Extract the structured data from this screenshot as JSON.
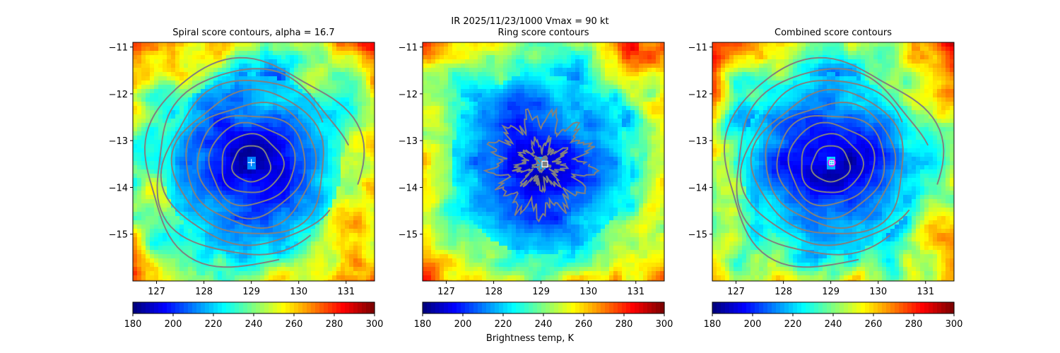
{
  "figure": {
    "suptitle": "IR  2025/11/23/1000    Vmax = 90 kt",
    "colorbar_label": "Brightness temp, K"
  },
  "chart_data": [
    {
      "type": "heatmap",
      "title": "Spiral score contours, alpha = 16.7",
      "xlim": [
        126.5,
        131.6
      ],
      "ylim": [
        -16.0,
        -10.9
      ],
      "xticks": [
        127,
        128,
        129,
        130,
        131
      ],
      "yticks": [
        -11,
        -12,
        -13,
        -14,
        -15
      ],
      "xtick_labels": [
        "127",
        "128",
        "129",
        "130",
        "131"
      ],
      "ytick_labels": [
        "−11",
        "−12",
        "−13",
        "−14",
        "−15"
      ],
      "colormap": "jet",
      "color_range": [
        180,
        300
      ],
      "colorbar_ticks": [
        180,
        200,
        220,
        240,
        260,
        280,
        300
      ],
      "contour_color": "#808080",
      "contour_style": "concentric",
      "center_marker": {
        "symbol": "+",
        "lon": 129.0,
        "lat": -13.47,
        "color": "#ffffff"
      }
    },
    {
      "type": "heatmap",
      "title": "Ring score contours",
      "xlim": [
        126.5,
        131.6
      ],
      "ylim": [
        -16.0,
        -10.9
      ],
      "xticks": [
        127,
        128,
        129,
        130,
        131
      ],
      "yticks": [
        -11,
        -12,
        -13,
        -14,
        -15
      ],
      "xtick_labels": [
        "127",
        "128",
        "129",
        "130",
        "131"
      ],
      "ytick_labels": [
        "−11",
        "−12",
        "−13",
        "−14",
        "−15"
      ],
      "colormap": "jet",
      "color_range": [
        180,
        300
      ],
      "colorbar_ticks": [
        180,
        200,
        220,
        240,
        260,
        280,
        300
      ],
      "contour_color": "#808080",
      "contour_style": "ring",
      "center_marker": {
        "symbol": "square",
        "lon": 129.08,
        "lat": -13.5,
        "color": "#ffffff"
      }
    },
    {
      "type": "heatmap",
      "title": "Combined score contours",
      "xlim": [
        126.5,
        131.6
      ],
      "ylim": [
        -16.0,
        -10.9
      ],
      "xticks": [
        127,
        128,
        129,
        130,
        131
      ],
      "yticks": [
        -11,
        -12,
        -13,
        -14,
        -15
      ],
      "xtick_labels": [
        "127",
        "128",
        "129",
        "130",
        "131"
      ],
      "ytick_labels": [
        "−11",
        "−12",
        "−13",
        "−14",
        "−15"
      ],
      "colormap": "jet",
      "color_range": [
        180,
        300
      ],
      "colorbar_ticks": [
        180,
        200,
        220,
        240,
        260,
        280,
        300
      ],
      "contour_color": "#808080",
      "contour_style": "concentric",
      "center_marker": {
        "symbol": "circle-plus",
        "lon": 129.02,
        "lat": -13.47,
        "color": "#ff00ff"
      }
    }
  ]
}
